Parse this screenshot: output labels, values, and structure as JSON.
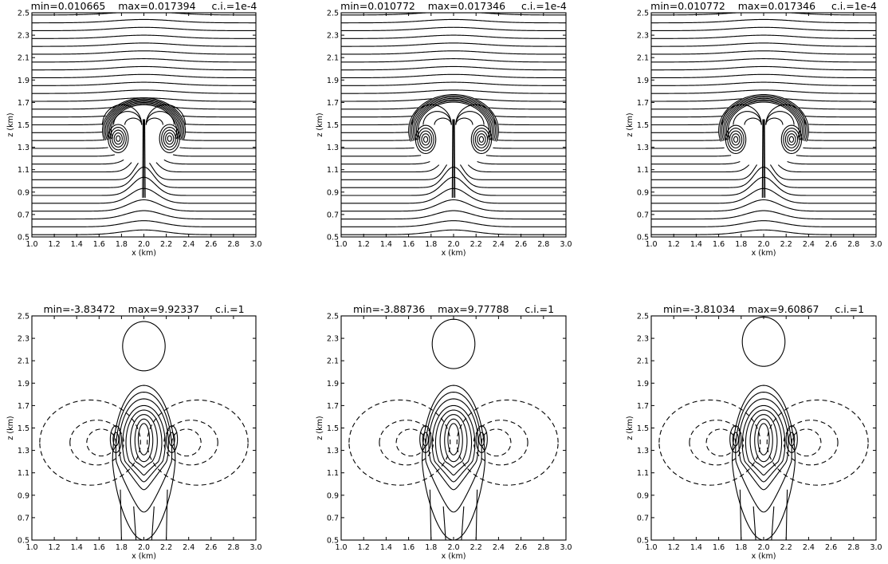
{
  "chart_data": [
    {
      "type": "contour",
      "field": "theta",
      "title": "min=0.010665    max=0.017394     c.i.=1e-4",
      "xlabel": "x (km)",
      "ylabel": "z (km)",
      "xlim": [
        1.0,
        3.0
      ],
      "ylim": [
        0.5,
        2.5
      ],
      "xticks": [
        "1.0",
        "1.2",
        "1.4",
        "1.6",
        "1.8",
        "2.0",
        "2.2",
        "2.4",
        "2.6",
        "2.8",
        "3.0"
      ],
      "yticks": [
        "0.5",
        "0.7",
        "0.9",
        "1.1",
        "1.3",
        "1.5",
        "1.7",
        "1.9",
        "2.1",
        "2.3",
        "2.5"
      ],
      "bubble": {
        "center_x": 2.0,
        "center_z": 1.45,
        "radius_x": 0.37,
        "radius_z": 0.29
      }
    },
    {
      "type": "contour",
      "field": "theta",
      "title": "min=0.010772    max=0.017346     c.i.=1e-4",
      "xlabel": "x (km)",
      "ylabel": "z (km)",
      "xlim": [
        1.0,
        3.0
      ],
      "ylim": [
        0.5,
        2.5
      ],
      "xticks": [
        "1.0",
        "1.2",
        "1.4",
        "1.6",
        "1.8",
        "2.0",
        "2.2",
        "2.4",
        "2.6",
        "2.8",
        "3.0"
      ],
      "yticks": [
        "0.5",
        "0.7",
        "0.9",
        "1.1",
        "1.3",
        "1.5",
        "1.7",
        "1.9",
        "2.1",
        "2.3",
        "2.5"
      ],
      "bubble": {
        "center_x": 2.0,
        "center_z": 1.45,
        "radius_x": 0.4,
        "radius_z": 0.32
      }
    },
    {
      "type": "contour",
      "field": "theta",
      "title": "min=0.010772    max=0.017346     c.i.=1e-4",
      "xlabel": "x (km)",
      "ylabel": "z (km)",
      "xlim": [
        1.0,
        3.0
      ],
      "ylim": [
        0.5,
        2.5
      ],
      "xticks": [
        "1.0",
        "1.2",
        "1.4",
        "1.6",
        "1.8",
        "2.0",
        "2.2",
        "2.4",
        "2.6",
        "2.8",
        "3.0"
      ],
      "yticks": [
        "0.5",
        "0.7",
        "0.9",
        "1.1",
        "1.3",
        "1.5",
        "1.7",
        "1.9",
        "2.1",
        "2.3",
        "2.5"
      ],
      "bubble": {
        "center_x": 2.0,
        "center_z": 1.45,
        "radius_x": 0.4,
        "radius_z": 0.32
      }
    },
    {
      "type": "contour",
      "field": "w",
      "title": "min=-3.83472    max=9.92337     c.i.=1",
      "xlabel": "x (km)",
      "ylabel": "z (km)",
      "xlim": [
        1.0,
        3.0
      ],
      "ylim": [
        0.5,
        2.5
      ],
      "xticks": [
        "1.0",
        "1.2",
        "1.4",
        "1.6",
        "1.8",
        "2.0",
        "2.2",
        "2.4",
        "2.6",
        "2.8",
        "3.0"
      ],
      "yticks": [
        "0.5",
        "0.7",
        "0.9",
        "1.1",
        "1.3",
        "1.5",
        "1.7",
        "1.9",
        "2.1",
        "2.3",
        "2.5"
      ],
      "cap_top_z": 2.45
    },
    {
      "type": "contour",
      "field": "w",
      "title": "min=-3.88736    max=9.77788     c.i.=1",
      "xlabel": "x (km)",
      "ylabel": "z (km)",
      "xlim": [
        1.0,
        3.0
      ],
      "ylim": [
        0.5,
        2.5
      ],
      "xticks": [
        "1.0",
        "1.2",
        "1.4",
        "1.6",
        "1.8",
        "2.0",
        "2.2",
        "2.4",
        "2.6",
        "2.8",
        "3.0"
      ],
      "yticks": [
        "0.5",
        "0.7",
        "0.9",
        "1.1",
        "1.3",
        "1.5",
        "1.7",
        "1.9",
        "2.1",
        "2.3",
        "2.5"
      ],
      "cap_top_z": 2.47
    },
    {
      "type": "contour",
      "field": "w",
      "title": "min=-3.81034    max=9.60867     c.i.=1",
      "xlabel": "x (km)",
      "ylabel": "z (km)",
      "xlim": [
        1.0,
        3.0
      ],
      "ylim": [
        0.5,
        2.5
      ],
      "xticks": [
        "1.0",
        "1.2",
        "1.4",
        "1.6",
        "1.8",
        "2.0",
        "2.2",
        "2.4",
        "2.6",
        "2.8",
        "3.0"
      ],
      "yticks": [
        "0.5",
        "0.7",
        "0.9",
        "1.1",
        "1.3",
        "1.5",
        "1.7",
        "1.9",
        "2.1",
        "2.3",
        "2.5"
      ],
      "cap_top_z": 2.49
    }
  ]
}
